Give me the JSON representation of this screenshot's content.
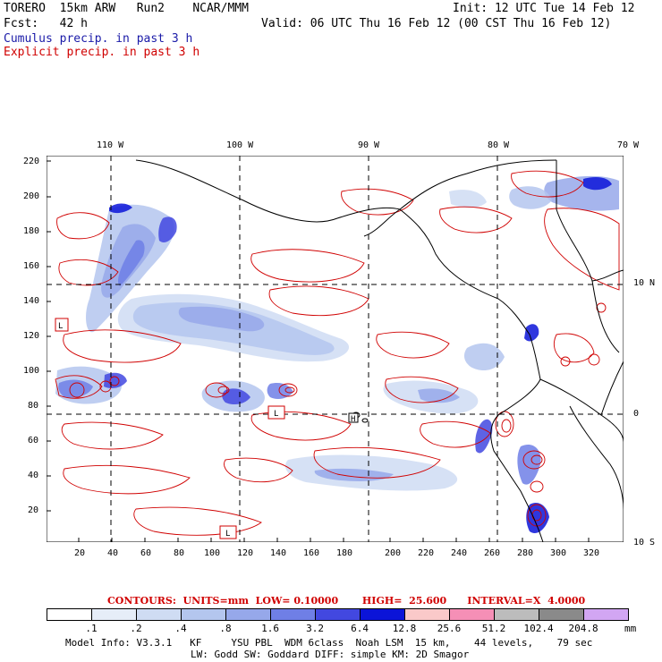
{
  "header": {
    "title": "TORERO  15km ARW   Run2    NCAR/MMM",
    "init": "Init: 12 UTC Tue 14 Feb 12",
    "fcst": "Fcst:   42 h",
    "valid": "Valid: 06 UTC Thu 16 Feb 12 (00 CST Thu 16 Feb 12)",
    "legend_cumulus": "Cumulus precip. in past 3 h",
    "legend_explicit": "Explicit precip. in past 3 h"
  },
  "colors": {
    "cumulus": "#1a1aa8",
    "explicit": "#d00000",
    "shade_levels": [
      "#ffffff",
      "#e6edf8",
      "#cfdcf3",
      "#b4c6ee",
      "#96a8ea",
      "#6f7fe6",
      "#4248e0",
      "#0b14d8",
      "#fac9c9",
      "#f58fb6",
      "#bcbcbc",
      "#8a8a8a",
      "#d2a6f3"
    ]
  },
  "axes": {
    "x_grid_labels": [
      "20",
      "40",
      "60",
      "80",
      "100",
      "120",
      "140",
      "160",
      "180",
      "200",
      "220",
      "240",
      "260",
      "280",
      "300",
      "320"
    ],
    "y_grid_labels": [
      "20",
      "40",
      "60",
      "80",
      "100",
      "120",
      "140",
      "160",
      "180",
      "200",
      "220"
    ],
    "lon_labels": [
      "110 W",
      "100 W",
      "90 W",
      "80 W",
      "70 W"
    ],
    "lat_labels": [
      "10 N",
      "0",
      "10 S"
    ]
  },
  "highlow_markers": [
    "L",
    "L",
    "H",
    "L"
  ],
  "contours_line": {
    "label": "CONTOURS:  UNITS=mm  LOW= 0.10000       HIGH=  25.600      INTERVAL=X  4.0000"
  },
  "colorbar": {
    "labels": [
      ".1",
      ".2",
      ".4",
      ".8",
      "1.6",
      "3.2",
      "6.4",
      "12.8",
      "25.6",
      "51.2",
      "102.4",
      "204.8"
    ],
    "units": "mm"
  },
  "model_info": {
    "line1": "Model Info: V3.3.1   KF     YSU PBL  WDM 6class  Noah LSM  15 km,    44 levels,    79 sec",
    "line2": "LW: Godd SW: Goddard DIFF: simple KM: 2D Smagor"
  }
}
